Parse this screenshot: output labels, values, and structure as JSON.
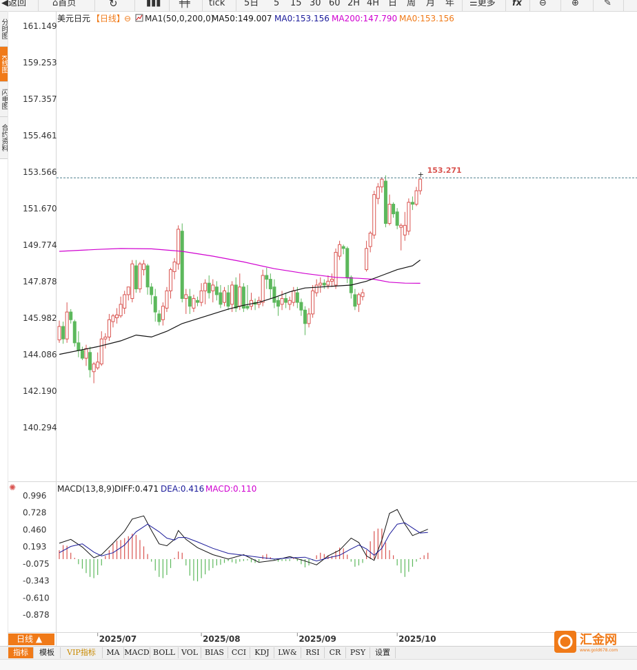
{
  "toolbar": {
    "back": "返回",
    "home": "首页",
    "tick": "tick",
    "periods": [
      "5日",
      "5",
      "15",
      "30",
      "60",
      "2H",
      "4H",
      "日",
      "周",
      "月",
      "年"
    ],
    "more": "更多",
    "fx": "fx"
  },
  "left_tabs": [
    "分时图",
    "K线图",
    "闪电图",
    "合约资料"
  ],
  "legend_main": {
    "symbol": "美元日元",
    "period": "【日线】",
    "ma_label": "MA1(50,0,200,0)",
    "ma50": "MA50:149.007",
    "ma0_a": "MA0:153.156",
    "ma200": "MA200:147.790",
    "ma0_b": "MA0:153.156"
  },
  "legend_macd": {
    "name": "MACD(13,8,9)",
    "diff": "DIFF:0.471",
    "dea": "DEA:0.416",
    "macd": "MACD:0.110"
  },
  "colors": {
    "up": "#d9534f",
    "down": "#5cb85c",
    "ma50": "#111111",
    "ma200": "#d000d0",
    "dea": "#1a1a9a",
    "ma0": "#f07a18",
    "accent": "#f07a18",
    "high_label": "#d9534f"
  },
  "footer": {
    "day_line": "日线 ▲",
    "tabs": [
      "指标",
      "模板",
      "VIP指标",
      "MA",
      "MACD",
      "BOLL",
      "VOL",
      "BIAS",
      "CCI",
      "KDJ",
      "LW&",
      "RSI",
      "CR",
      "PSY",
      "设置"
    ]
  },
  "logo": {
    "text": "汇金网",
    "sub": "www.gold678.com"
  },
  "chart_data": {
    "type": "candlestick",
    "price_axis": {
      "ticks": [
        161.149,
        159.253,
        157.357,
        155.461,
        153.566,
        151.67,
        149.774,
        147.878,
        145.982,
        144.086,
        142.19,
        140.294
      ]
    },
    "macd_axis": {
      "ticks": [
        0.996,
        0.728,
        0.46,
        0.193,
        -0.075,
        -0.343,
        -0.61,
        -0.878
      ]
    },
    "x_labels": [
      {
        "label": "2025/07",
        "index": 10
      },
      {
        "label": "2025/08",
        "index": 37
      },
      {
        "label": "2025/09",
        "index": 62
      },
      {
        "label": "2025/10",
        "index": 88
      }
    ],
    "current_price": 153.271,
    "high_label": {
      "index": 94,
      "value": "153.271"
    },
    "candles": [
      [
        144.85,
        145.55,
        144.7,
        145.85
      ],
      [
        145.55,
        144.9,
        144.65,
        145.8
      ],
      [
        144.9,
        146.3,
        144.7,
        146.8
      ],
      [
        146.3,
        145.9,
        145.7,
        146.45
      ],
      [
        145.8,
        144.7,
        144.5,
        145.9
      ],
      [
        144.7,
        144.3,
        143.95,
        145.3
      ],
      [
        144.3,
        143.9,
        143.8,
        144.5
      ],
      [
        143.9,
        144.4,
        143.5,
        144.6
      ],
      [
        144.2,
        143.3,
        142.9,
        144.5
      ],
      [
        143.2,
        143.6,
        142.6,
        143.7
      ],
      [
        143.4,
        143.7,
        143.3,
        144.2
      ],
      [
        143.6,
        144.9,
        143.5,
        145.3
      ],
      [
        144.9,
        145.0,
        144.4,
        145.2
      ],
      [
        145.0,
        145.9,
        144.8,
        146.2
      ],
      [
        145.8,
        146.1,
        145.5,
        146.2
      ],
      [
        146.0,
        146.15,
        145.7,
        146.5
      ],
      [
        146.1,
        146.7,
        146.0,
        147.1
      ],
      [
        146.5,
        147.2,
        146.2,
        147.4
      ],
      [
        147.2,
        147.6,
        146.9,
        147.6
      ],
      [
        147.0,
        148.8,
        146.8,
        149.0
      ],
      [
        148.7,
        147.5,
        147.3,
        149.0
      ],
      [
        147.5,
        148.8,
        147.3,
        148.9
      ],
      [
        148.5,
        148.8,
        148.2,
        149.0
      ],
      [
        148.7,
        147.6,
        147.2,
        148.8
      ],
      [
        147.6,
        147.2,
        146.7,
        147.8
      ],
      [
        147.1,
        146.3,
        145.8,
        147.5
      ],
      [
        146.2,
        145.8,
        145.6,
        146.4
      ],
      [
        145.9,
        146.6,
        145.6,
        146.8
      ],
      [
        146.5,
        147.4,
        146.3,
        147.6
      ],
      [
        147.4,
        148.5,
        147.0,
        148.6
      ],
      [
        148.4,
        148.9,
        148.0,
        149.1
      ],
      [
        148.8,
        150.6,
        148.5,
        150.8
      ],
      [
        150.5,
        147.0,
        146.8,
        150.9
      ],
      [
        147.0,
        147.2,
        146.2,
        147.5
      ],
      [
        147.1,
        146.6,
        146.2,
        147.5
      ],
      [
        146.5,
        147.0,
        146.3,
        147.2
      ],
      [
        146.9,
        146.8,
        146.6,
        147.1
      ],
      [
        146.8,
        147.4,
        146.6,
        147.8
      ],
      [
        147.4,
        147.8,
        146.7,
        148.0
      ],
      [
        147.8,
        147.3,
        147.0,
        148.2
      ],
      [
        147.4,
        147.7,
        146.8,
        148.0
      ],
      [
        147.6,
        147.2,
        146.9,
        147.9
      ],
      [
        147.3,
        146.7,
        146.5,
        147.7
      ],
      [
        146.8,
        147.4,
        146.6,
        147.6
      ],
      [
        147.3,
        146.6,
        146.4,
        147.7
      ],
      [
        146.7,
        147.7,
        146.3,
        147.9
      ],
      [
        147.7,
        146.5,
        146.3,
        148.1
      ],
      [
        146.6,
        147.6,
        146.4,
        148.3
      ],
      [
        147.6,
        146.5,
        146.3,
        147.8
      ],
      [
        146.6,
        146.5,
        146.4,
        147.7
      ],
      [
        146.6,
        146.9,
        146.4,
        147.3
      ],
      [
        146.8,
        146.7,
        146.4,
        147.0
      ],
      [
        146.7,
        146.9,
        146.5,
        147.1
      ],
      [
        146.8,
        148.2,
        146.6,
        148.5
      ],
      [
        148.2,
        148.0,
        147.5,
        148.6
      ],
      [
        148.0,
        147.5,
        147.0,
        148.3
      ],
      [
        147.6,
        146.8,
        146.5,
        148.0
      ],
      [
        146.9,
        146.6,
        146.1,
        147.1
      ],
      [
        146.7,
        147.0,
        146.4,
        147.4
      ],
      [
        147.0,
        146.8,
        146.5,
        147.3
      ],
      [
        146.7,
        146.9,
        146.4,
        147.1
      ],
      [
        146.8,
        147.4,
        146.6,
        147.6
      ],
      [
        147.3,
        146.8,
        146.5,
        147.6
      ],
      [
        146.8,
        146.4,
        146.1,
        147.0
      ],
      [
        146.4,
        145.7,
        145.1,
        146.6
      ],
      [
        145.7,
        146.2,
        145.5,
        146.5
      ],
      [
        146.2,
        147.4,
        146.0,
        147.7
      ],
      [
        147.3,
        147.7,
        147.1,
        148.0
      ],
      [
        147.7,
        147.8,
        147.3,
        148.1
      ],
      [
        147.8,
        147.7,
        147.5,
        148.0
      ],
      [
        147.7,
        147.9,
        147.5,
        148.2
      ],
      [
        147.9,
        148.0,
        147.6,
        148.3
      ],
      [
        147.7,
        149.4,
        147.5,
        149.6
      ],
      [
        149.2,
        149.8,
        149.0,
        150.0
      ],
      [
        149.7,
        149.6,
        149.3,
        149.8
      ],
      [
        149.6,
        148.1,
        147.8,
        149.7
      ],
      [
        148.1,
        147.3,
        147.0,
        148.2
      ],
      [
        147.2,
        146.6,
        146.4,
        147.5
      ],
      [
        146.7,
        147.2,
        146.3,
        147.3
      ],
      [
        147.1,
        147.3,
        146.9,
        147.5
      ],
      [
        148.5,
        149.6,
        148.4,
        150.0
      ],
      [
        149.7,
        150.4,
        149.4,
        150.5
      ],
      [
        150.3,
        152.4,
        150.1,
        152.6
      ],
      [
        152.2,
        152.8,
        151.9,
        153.0
      ],
      [
        152.8,
        153.2,
        152.5,
        153.3
      ],
      [
        153.1,
        150.9,
        150.7,
        153.4
      ],
      [
        150.9,
        151.9,
        150.8,
        152.4
      ],
      [
        151.9,
        151.4,
        151.2,
        152.0
      ],
      [
        151.5,
        150.8,
        150.6,
        151.7
      ],
      [
        150.7,
        150.8,
        149.5,
        150.9
      ],
      [
        150.3,
        150.8,
        150.0,
        151.5
      ],
      [
        150.5,
        152.0,
        150.3,
        152.2
      ],
      [
        152.0,
        151.9,
        151.6,
        152.3
      ],
      [
        151.9,
        152.6,
        151.8,
        152.8
      ],
      [
        152.6,
        153.2,
        152.4,
        153.3
      ]
    ],
    "ma50": [
      [
        0,
        144.1
      ],
      [
        10,
        144.5
      ],
      [
        16,
        144.8
      ],
      [
        20,
        145.1
      ],
      [
        24,
        145.0
      ],
      [
        28,
        145.3
      ],
      [
        32,
        145.7
      ],
      [
        36,
        145.95
      ],
      [
        40,
        146.2
      ],
      [
        44,
        146.45
      ],
      [
        48,
        146.65
      ],
      [
        52,
        146.8
      ],
      [
        56,
        147.05
      ],
      [
        60,
        147.35
      ],
      [
        64,
        147.55
      ],
      [
        68,
        147.6
      ],
      [
        72,
        147.65
      ],
      [
        76,
        147.7
      ],
      [
        80,
        147.9
      ],
      [
        84,
        148.2
      ],
      [
        88,
        148.5
      ],
      [
        92,
        148.7
      ],
      [
        94,
        149.0
      ]
    ],
    "ma200": [
      [
        0,
        149.45
      ],
      [
        10,
        149.55
      ],
      [
        16,
        149.6
      ],
      [
        24,
        149.58
      ],
      [
        32,
        149.45
      ],
      [
        40,
        149.2
      ],
      [
        48,
        148.9
      ],
      [
        56,
        148.55
      ],
      [
        64,
        148.3
      ],
      [
        72,
        148.1
      ],
      [
        78,
        148.05
      ],
      [
        82,
        148.0
      ],
      [
        86,
        147.85
      ],
      [
        90,
        147.8
      ],
      [
        94,
        147.79
      ]
    ],
    "diff": [
      [
        0,
        0.25
      ],
      [
        3,
        0.31
      ],
      [
        6,
        0.19
      ],
      [
        9,
        0.02
      ],
      [
        11,
        0.07
      ],
      [
        14,
        0.25
      ],
      [
        17,
        0.44
      ],
      [
        19,
        0.63
      ],
      [
        22,
        0.68
      ],
      [
        24,
        0.45
      ],
      [
        26,
        0.24
      ],
      [
        28,
        0.21
      ],
      [
        30,
        0.31
      ],
      [
        31,
        0.45
      ],
      [
        33,
        0.31
      ],
      [
        36,
        0.18
      ],
      [
        40,
        0.07
      ],
      [
        44,
        0.0
      ],
      [
        48,
        0.07
      ],
      [
        52,
        -0.05
      ],
      [
        56,
        -0.02
      ],
      [
        60,
        0.04
      ],
      [
        64,
        -0.03
      ],
      [
        67,
        -0.09
      ],
      [
        70,
        0.05
      ],
      [
        73,
        0.14
      ],
      [
        76,
        0.33
      ],
      [
        78,
        0.26
      ],
      [
        80,
        0.05
      ],
      [
        82,
        -0.02
      ],
      [
        84,
        0.3
      ],
      [
        86,
        0.72
      ],
      [
        88,
        0.78
      ],
      [
        90,
        0.55
      ],
      [
        92,
        0.37
      ],
      [
        94,
        0.42
      ],
      [
        96,
        0.47
      ]
    ],
    "dea": [
      [
        0,
        0.1
      ],
      [
        3,
        0.2
      ],
      [
        6,
        0.24
      ],
      [
        9,
        0.11
      ],
      [
        11,
        0.05
      ],
      [
        14,
        0.1
      ],
      [
        17,
        0.22
      ],
      [
        20,
        0.43
      ],
      [
        23,
        0.55
      ],
      [
        26,
        0.43
      ],
      [
        28,
        0.33
      ],
      [
        30,
        0.3
      ],
      [
        31,
        0.34
      ],
      [
        33,
        0.34
      ],
      [
        36,
        0.27
      ],
      [
        40,
        0.17
      ],
      [
        44,
        0.09
      ],
      [
        48,
        0.06
      ],
      [
        52,
        0.03
      ],
      [
        56,
        0.0
      ],
      [
        60,
        0.02
      ],
      [
        64,
        0.03
      ],
      [
        67,
        -0.03
      ],
      [
        70,
        0.02
      ],
      [
        73,
        0.06
      ],
      [
        76,
        0.16
      ],
      [
        78,
        0.22
      ],
      [
        80,
        0.16
      ],
      [
        82,
        0.06
      ],
      [
        84,
        0.17
      ],
      [
        86,
        0.39
      ],
      [
        88,
        0.55
      ],
      [
        90,
        0.57
      ],
      [
        92,
        0.49
      ],
      [
        94,
        0.41
      ],
      [
        96,
        0.42
      ]
    ],
    "macd_hist": [
      0.14,
      0.22,
      0.21,
      0.1,
      0.02,
      -0.08,
      -0.15,
      -0.22,
      -0.28,
      -0.3,
      -0.25,
      -0.1,
      0.05,
      0.14,
      0.24,
      0.29,
      0.3,
      0.33,
      0.36,
      0.4,
      0.38,
      0.3,
      0.2,
      0.08,
      -0.04,
      -0.18,
      -0.28,
      -0.3,
      -0.25,
      -0.14,
      0.02,
      0.12,
      0.1,
      -0.1,
      -0.26,
      -0.34,
      -0.35,
      -0.3,
      -0.24,
      -0.18,
      -0.14,
      -0.1,
      -0.09,
      -0.06,
      -0.03,
      -0.05,
      -0.07,
      -0.04,
      -0.03,
      -0.02,
      -0.05,
      -0.06,
      -0.04,
      0.06,
      0.08,
      0.03,
      -0.02,
      -0.04,
      -0.03,
      -0.03,
      -0.03,
      0.02,
      -0.03,
      -0.08,
      -0.13,
      -0.1,
      -0.02,
      0.06,
      0.1,
      0.08,
      0.06,
      0.05,
      0.13,
      0.18,
      0.17,
      0.07,
      -0.04,
      -0.12,
      -0.1,
      -0.06,
      0.14,
      0.28,
      0.44,
      0.48,
      0.48,
      0.26,
      0.14,
      0.06,
      -0.1,
      -0.22,
      -0.28,
      -0.2,
      -0.12,
      -0.04,
      0.02,
      0.06,
      0.1
    ]
  }
}
